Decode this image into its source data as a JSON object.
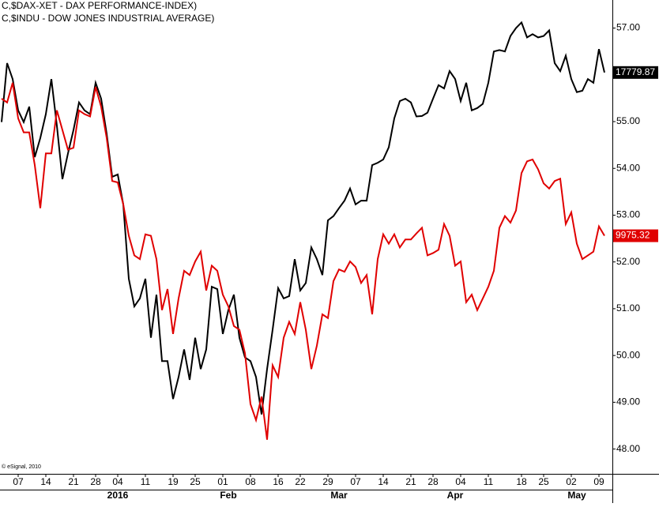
{
  "chart_data": {
    "type": "line",
    "legend": [
      "C,$DAX-XET - DAX PERFORMANCE-INDEX)",
      "C,$INDU - DOW JONES INDUSTRIAL AVERAGE)"
    ],
    "credit": "© eSignal, 2010",
    "categories": [
      null,
      null,
      null,
      "07",
      null,
      null,
      null,
      null,
      "14",
      null,
      null,
      null,
      null,
      "21",
      null,
      null,
      null,
      "28",
      null,
      null,
      null,
      "04",
      null,
      null,
      null,
      null,
      "11",
      null,
      null,
      null,
      null,
      "19",
      null,
      null,
      null,
      "25",
      null,
      null,
      null,
      null,
      "01",
      null,
      null,
      null,
      null,
      "08",
      null,
      null,
      null,
      null,
      "16",
      null,
      null,
      null,
      "22",
      null,
      null,
      null,
      null,
      "29",
      null,
      null,
      null,
      null,
      "07",
      null,
      null,
      null,
      null,
      "14",
      null,
      null,
      null,
      null,
      "21",
      null,
      null,
      null,
      "28",
      null,
      null,
      null,
      null,
      "04",
      null,
      null,
      null,
      null,
      "11",
      null,
      null,
      null,
      null,
      null,
      "18",
      null,
      null,
      null,
      "25",
      null,
      null,
      null,
      null,
      "02",
      null,
      null,
      null,
      null,
      "09",
      null
    ],
    "months": [
      null,
      null,
      null,
      null,
      null,
      null,
      null,
      null,
      null,
      null,
      null,
      null,
      null,
      null,
      null,
      null,
      null,
      null,
      null,
      null,
      null,
      "2016",
      null,
      null,
      null,
      null,
      null,
      null,
      null,
      null,
      null,
      null,
      null,
      null,
      null,
      null,
      null,
      null,
      null,
      null,
      null,
      "Feb",
      null,
      null,
      null,
      null,
      null,
      null,
      null,
      null,
      null,
      null,
      null,
      null,
      null,
      null,
      null,
      null,
      null,
      null,
      null,
      "Mar",
      null,
      null,
      null,
      null,
      null,
      null,
      null,
      null,
      null,
      null,
      null,
      null,
      null,
      null,
      null,
      null,
      null,
      null,
      null,
      null,
      "Apr",
      null,
      null,
      null,
      null,
      null,
      null,
      null,
      null,
      null,
      null,
      null,
      null,
      null,
      null,
      null,
      null,
      null,
      null,
      null,
      null,
      null,
      "May",
      null,
      null,
      null,
      null,
      null
    ],
    "series": [
      {
        "name": "C,$INDU - DOW JONES INDUSTRIAL AVERAGE)",
        "color": "#000000",
        "last_label": "17779.87",
        "values": [
          54.99,
          56.25,
          55.91,
          55.24,
          54.99,
          55.32,
          54.24,
          54.65,
          55.16,
          55.91,
          54.91,
          53.77,
          54.32,
          54.82,
          55.41,
          55.24,
          55.16,
          55.83,
          55.49,
          54.74,
          53.82,
          53.87,
          53.23,
          51.64,
          51.05,
          51.22,
          51.64,
          50.38,
          51.3,
          49.88,
          49.88,
          49.07,
          49.54,
          50.13,
          49.48,
          50.38,
          49.71,
          50.13,
          51.47,
          51.42,
          50.46,
          50.97,
          51.3,
          50.38,
          49.96,
          49.88,
          49.54,
          48.74,
          49.71,
          50.55,
          51.44,
          51.22,
          51.27,
          52.06,
          51.39,
          51.55,
          52.31,
          52.06,
          51.72,
          52.89,
          52.98,
          53.15,
          53.31,
          53.57,
          53.23,
          53.31,
          53.31,
          54.07,
          54.12,
          54.19,
          54.45,
          55.07,
          55.44,
          55.49,
          55.41,
          55.11,
          55.12,
          55.19,
          55.49,
          55.78,
          55.71,
          56.08,
          55.91,
          55.44,
          55.83,
          55.24,
          55.29,
          55.38,
          55.83,
          56.5,
          56.53,
          56.5,
          56.83,
          57.0,
          57.12,
          56.8,
          56.87,
          56.8,
          56.83,
          56.95,
          56.25,
          56.08,
          56.41,
          55.91,
          55.63,
          55.66,
          55.91,
          55.83,
          56.55,
          56.05
        ]
      },
      {
        "name": "C,$DAX-XET - DAX PERFORMANCE-INDEX)",
        "color": "#e00000",
        "last_label": "9975.32",
        "values": [
          55.49,
          55.41,
          55.83,
          55.07,
          54.77,
          54.77,
          54.07,
          53.15,
          54.32,
          54.32,
          55.24,
          54.82,
          54.4,
          54.44,
          55.24,
          55.16,
          55.11,
          55.74,
          55.32,
          54.65,
          53.73,
          53.7,
          53.23,
          52.56,
          52.14,
          52.06,
          52.59,
          52.56,
          52.06,
          50.97,
          51.42,
          50.46,
          51.22,
          51.81,
          51.72,
          52.01,
          52.22,
          51.39,
          51.92,
          51.81,
          51.3,
          51.05,
          50.63,
          50.55,
          50.05,
          48.96,
          48.62,
          49.12,
          48.2,
          49.79,
          49.54,
          50.38,
          50.72,
          50.46,
          51.14,
          50.55,
          49.71,
          50.21,
          50.88,
          50.8,
          51.59,
          51.84,
          51.79,
          52.01,
          51.89,
          51.55,
          51.72,
          50.88,
          52.06,
          52.59,
          52.39,
          52.59,
          52.31,
          52.48,
          52.48,
          52.61,
          52.73,
          52.14,
          52.19,
          52.26,
          52.81,
          52.56,
          51.92,
          52.01,
          51.14,
          51.3,
          50.97,
          51.22,
          51.47,
          51.81,
          52.73,
          52.98,
          52.84,
          53.1,
          53.9,
          54.15,
          54.19,
          53.98,
          53.68,
          53.57,
          53.73,
          53.78,
          52.81,
          53.06,
          52.39,
          52.06,
          52.14,
          52.22,
          52.76,
          52.56
        ]
      }
    ],
    "ylim": [
      47.47,
      57.6
    ],
    "yticks": [
      {
        "value": 48,
        "label": "48.00"
      },
      {
        "value": 49,
        "label": "49.00"
      },
      {
        "value": 50,
        "label": "50.00"
      },
      {
        "value": 51,
        "label": "51.00"
      },
      {
        "value": 52,
        "label": "52.00"
      },
      {
        "value": 53,
        "label": "53.00"
      },
      {
        "value": 54,
        "label": "54.00"
      },
      {
        "value": 55,
        "label": "55.00"
      },
      {
        "value": 56,
        "label": "56.00"
      },
      {
        "value": 57,
        "label": "57.00"
      }
    ]
  }
}
